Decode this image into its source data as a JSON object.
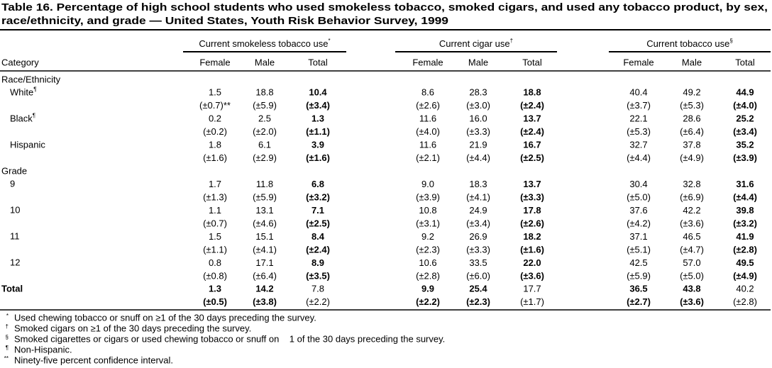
{
  "header": {
    "title_lines": [
      "Table 16. Percentage of high school students who used smokeless tobacco, smoked cigars, and used any tobacco product, by sex,",
      "race/ethnicity, and grade — United States, Youth Risk Behavior Survey, 1999"
    ]
  },
  "table": {
    "group_headers": [
      {
        "label": "Current smokeless tobacco use",
        "mark": "*"
      },
      {
        "label": "Current cigar use",
        "mark": "†"
      },
      {
        "label": "Current tobacco use",
        "mark": "§"
      }
    ],
    "column_headers": [
      "Category",
      "Female",
      "Male",
      "Total",
      "Female",
      "Male",
      "Total",
      "Female",
      "Male",
      "Total"
    ],
    "sections": [
      {
        "label": "Race/Ethnicity",
        "rows": [
          {
            "label": "White",
            "mark": "¶",
            "values": [
              "1.5",
              "18.8",
              "10.4",
              "8.6",
              "28.3",
              "18.8",
              "40.4",
              "49.2",
              "44.9"
            ],
            "ci": [
              "(±0.7)**",
              "(±5.9)",
              "(±3.4)",
              "(±2.6)",
              "(±3.0)",
              "(±2.4)",
              "(±3.7)",
              "(±5.3)",
              "(±4.0)"
            ]
          },
          {
            "label": "Black",
            "mark": "¶",
            "values": [
              "0.2",
              "2.5",
              "1.3",
              "11.6",
              "16.0",
              "13.7",
              "22.1",
              "28.6",
              "25.2"
            ],
            "ci": [
              "(±0.2)",
              "(±2.0)",
              "(±1.1)",
              "(±4.0)",
              "(±3.3)",
              "(±2.4)",
              "(±5.3)",
              "(±6.4)",
              "(±3.4)"
            ]
          },
          {
            "label": "Hispanic",
            "values": [
              "1.8",
              "6.1",
              "3.9",
              "11.6",
              "21.9",
              "16.7",
              "32.7",
              "37.8",
              "35.2"
            ],
            "ci": [
              "(±1.6)",
              "(±2.9)",
              "(±1.6)",
              "(±2.1)",
              "(±4.4)",
              "(±2.5)",
              "(±4.4)",
              "(±4.9)",
              "(±3.9)"
            ]
          }
        ]
      },
      {
        "label": "Grade",
        "rows": [
          {
            "label": "9",
            "values": [
              "1.7",
              "11.8",
              "6.8",
              "9.0",
              "18.3",
              "13.7",
              "30.4",
              "32.8",
              "31.6"
            ],
            "ci": [
              "(±1.3)",
              "(±5.9)",
              "(±3.2)",
              "(±3.9)",
              "(±4.1)",
              "(±3.3)",
              "(±5.0)",
              "(±6.9)",
              "(±4.4)"
            ]
          },
          {
            "label": "10",
            "values": [
              "1.1",
              "13.1",
              "7.1",
              "10.8",
              "24.9",
              "17.8",
              "37.6",
              "42.2",
              "39.8"
            ],
            "ci": [
              "(±0.7)",
              "(±4.6)",
              "(±2.5)",
              "(±3.1)",
              "(±3.4)",
              "(±2.6)",
              "(±4.2)",
              "(±3.6)",
              "(±3.2)"
            ]
          },
          {
            "label": "11",
            "values": [
              "1.5",
              "15.1",
              "8.4",
              "9.2",
              "26.9",
              "18.2",
              "37.1",
              "46.5",
              "41.9"
            ],
            "ci": [
              "(±1.1)",
              "(±4.1)",
              "(±2.4)",
              "(±2.3)",
              "(±3.3)",
              "(±1.6)",
              "(±5.1)",
              "(±4.7)",
              "(±2.8)"
            ]
          },
          {
            "label": "12",
            "values": [
              "0.8",
              "17.1",
              "8.9",
              "10.6",
              "33.5",
              "22.0",
              "42.5",
              "57.0",
              "49.5"
            ],
            "ci": [
              "(±0.8)",
              "(±6.4)",
              "(±3.5)",
              "(±2.8)",
              "(±6.0)",
              "(±3.6)",
              "(±5.9)",
              "(±5.0)",
              "(±4.9)"
            ]
          }
        ]
      }
    ],
    "total": {
      "label": "Total",
      "values": [
        "1.3",
        "14.2",
        "7.8",
        "9.9",
        "25.4",
        "17.7",
        "36.5",
        "43.8",
        "40.2"
      ],
      "ci": [
        "(±0.5)",
        "(±3.8)",
        "(±2.2)",
        "(±2.2)",
        "(±2.3)",
        "(±1.7)",
        "(±2.7)",
        "(±3.6)",
        "(±2.8)"
      ]
    }
  },
  "footnotes": [
    {
      "mark": "*",
      "text": "Used chewing tobacco or snuff on ≥1 of the 30 days preceding the survey."
    },
    {
      "mark": "†",
      "text": "Smoked cigars on ≥1 of the 30 days preceding the survey."
    },
    {
      "mark": "§",
      "text": "Smoked cigarettes or cigars or used chewing tobacco or snuff on    1 of the 30 days preceding the survey."
    },
    {
      "mark": "¶",
      "text": "Non-Hispanic."
    },
    {
      "mark": "**",
      "text": "Ninety-five percent confidence interval."
    }
  ]
}
